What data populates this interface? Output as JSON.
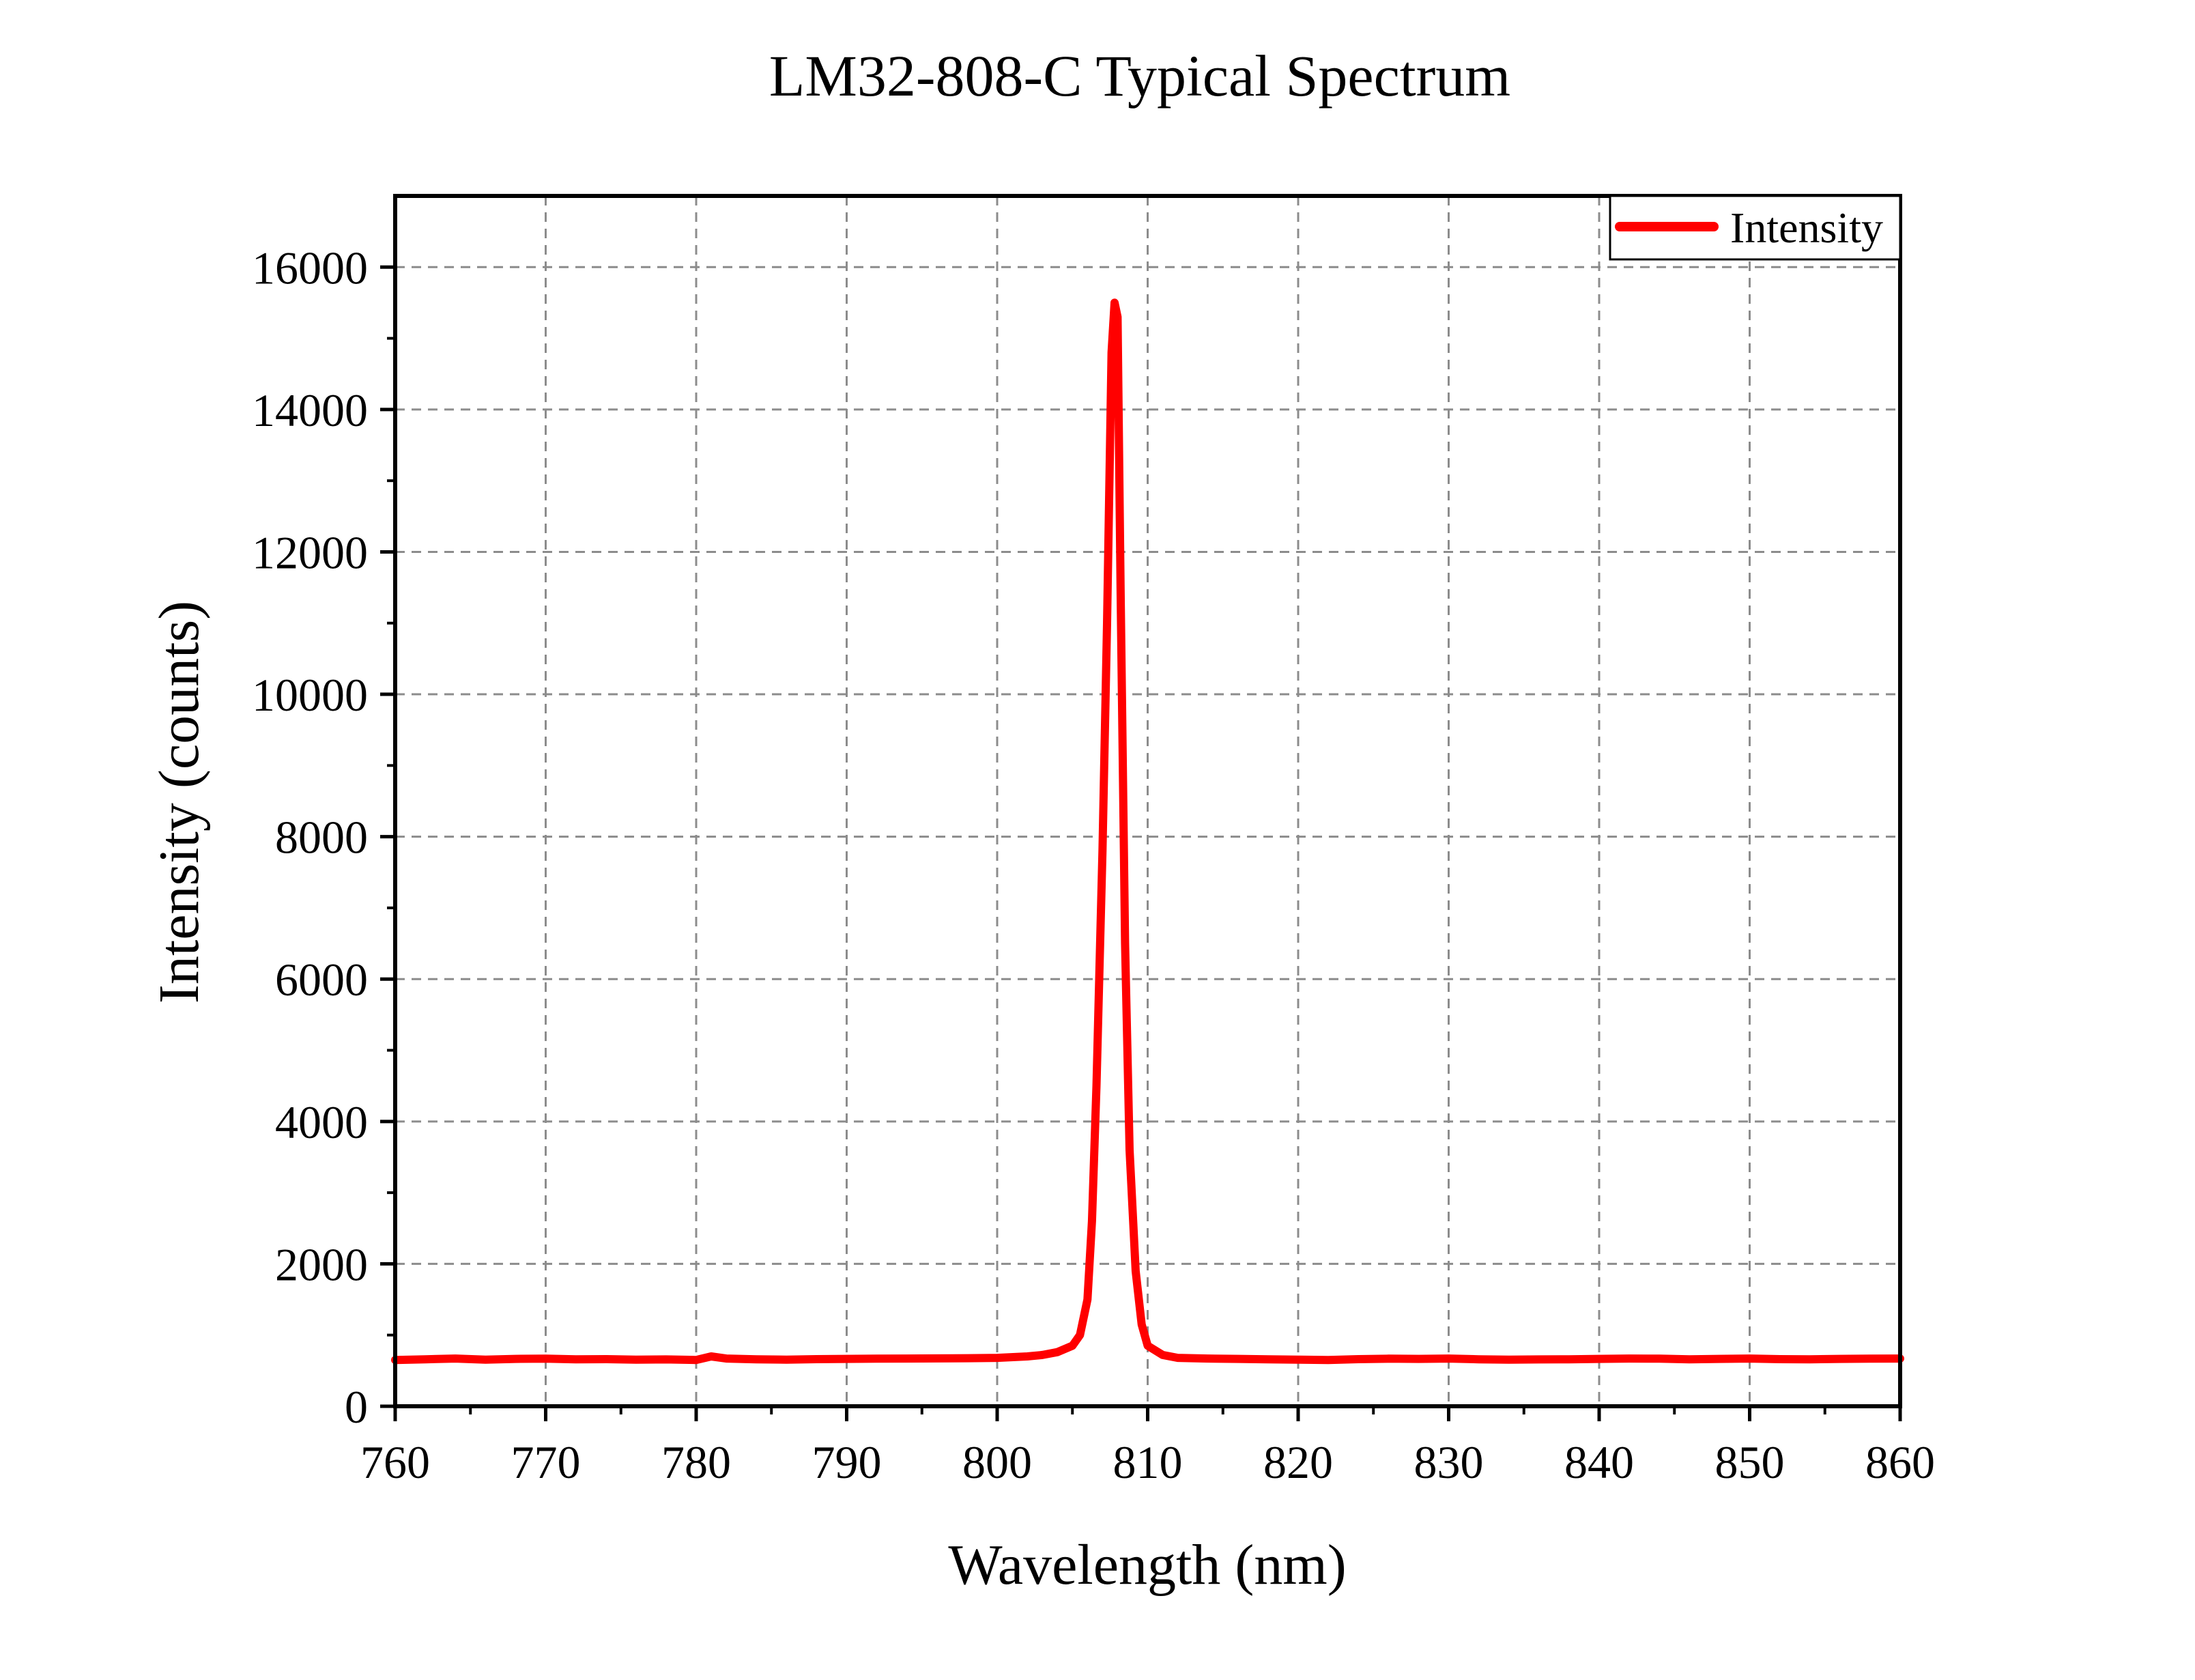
{
  "chart_data": {
    "type": "line",
    "title": "LM32-808-C Typical Spectrum",
    "xlabel": "Wavelength (nm)",
    "ylabel": "Intensity (counts)",
    "xlim": [
      760,
      860
    ],
    "ylim": [
      0,
      17000
    ],
    "xticks": [
      760,
      770,
      780,
      790,
      800,
      810,
      820,
      830,
      840,
      850,
      860
    ],
    "yticks": [
      0,
      2000,
      4000,
      6000,
      8000,
      10000,
      12000,
      14000,
      16000
    ],
    "grid": true,
    "legend_position": "top-right",
    "series": [
      {
        "name": "Intensity",
        "color": "#ff0000",
        "x": [
          760,
          762,
          764,
          766,
          768,
          770,
          772,
          774,
          776,
          778,
          780,
          781,
          782,
          784,
          786,
          788,
          790,
          792,
          794,
          796,
          798,
          800,
          802,
          803,
          804,
          805,
          805.5,
          806,
          806.3,
          806.6,
          807,
          807.3,
          807.6,
          807.8,
          808,
          808.2,
          808.5,
          808.8,
          809.2,
          809.6,
          810,
          811,
          812,
          814,
          816,
          818,
          820,
          822,
          824,
          826,
          828,
          830,
          832,
          834,
          836,
          838,
          840,
          842,
          844,
          846,
          848,
          850,
          852,
          854,
          856,
          858,
          860
        ],
        "y": [
          650,
          660,
          670,
          655,
          665,
          668,
          660,
          662,
          655,
          658,
          650,
          700,
          670,
          660,
          655,
          662,
          665,
          668,
          670,
          672,
          675,
          680,
          700,
          720,
          760,
          850,
          1000,
          1500,
          2600,
          4500,
          7800,
          11000,
          14800,
          15500,
          15300,
          11500,
          6500,
          3600,
          1900,
          1150,
          850,
          720,
          680,
          670,
          665,
          660,
          655,
          650,
          662,
          668,
          665,
          670,
          660,
          655,
          658,
          660,
          665,
          670,
          668,
          660,
          665,
          670,
          662,
          660,
          665,
          668,
          670
        ]
      }
    ]
  }
}
